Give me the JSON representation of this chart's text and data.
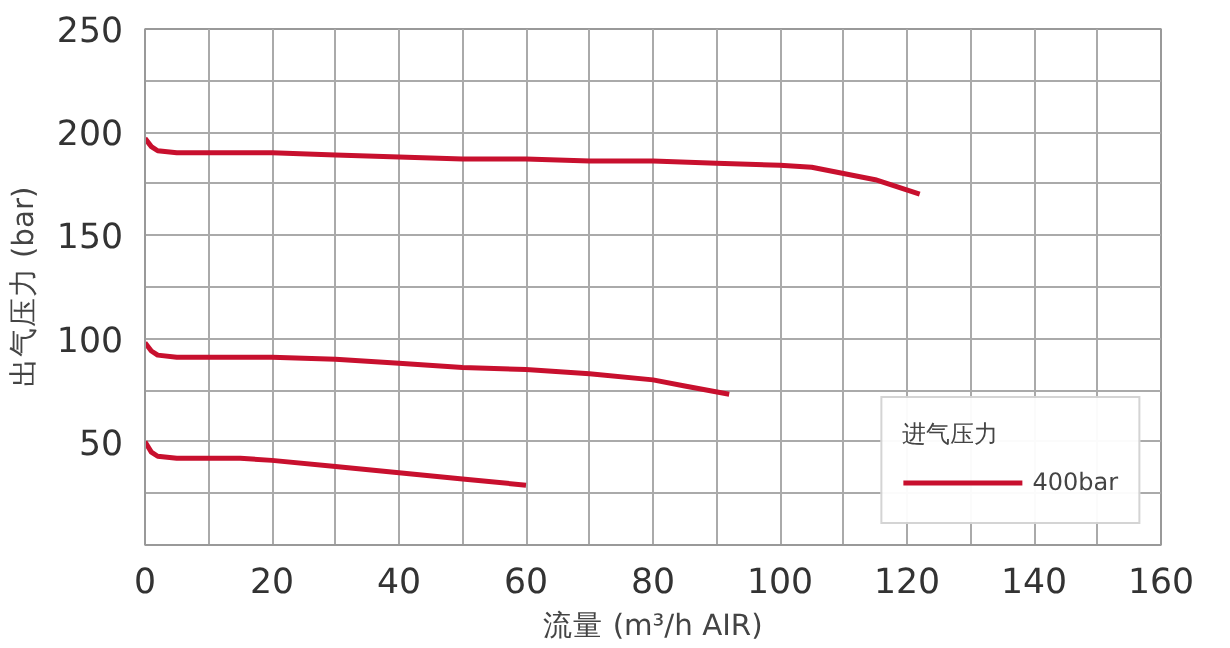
{
  "chart_data": {
    "type": "line",
    "xlabel": "流量 (m³/h AIR)",
    "ylabel": "出气压力 (bar)",
    "legend_title": "进气压力",
    "legend": "bottom right",
    "grid": true,
    "marker": "none",
    "line_style": "solid",
    "xlim": [
      0,
      160
    ],
    "xticks": [
      0,
      {
        "value": 10,
        "label": null
      },
      20,
      {
        "value": 30,
        "label": null
      },
      40,
      {
        "value": 50,
        "label": null
      },
      60,
      {
        "value": 70,
        "label": null
      },
      80,
      {
        "value": 90,
        "label": null
      },
      100,
      {
        "value": 110,
        "label": null
      },
      120,
      {
        "value": 130,
        "label": null
      },
      140,
      {
        "value": 150,
        "label": null
      },
      160
    ],
    "ylim": [
      0,
      250
    ],
    "yticks": [
      {
        "value": 25,
        "label": null
      },
      50,
      {
        "value": 75,
        "label": null
      },
      100,
      {
        "value": 125,
        "label": null
      },
      150,
      {
        "value": 175,
        "label": null
      },
      200,
      {
        "value": 225,
        "label": null
      },
      250
    ],
    "series": [
      {
        "name": "400bar",
        "color": "#c8102e",
        "x": [
          0,
          1,
          2,
          5,
          10,
          20,
          30,
          40,
          50,
          60,
          70,
          80,
          90,
          100,
          105,
          110,
          115,
          122
        ],
        "values": [
          197,
          193,
          191,
          190,
          190,
          190,
          189,
          188,
          187,
          187,
          186,
          186,
          185,
          184,
          183,
          180,
          177,
          170
        ]
      },
      {
        "color": "#c8102e",
        "x": [
          0,
          1,
          2,
          5,
          10,
          20,
          30,
          40,
          50,
          60,
          70,
          80,
          85,
          92
        ],
        "values": [
          98,
          94,
          92,
          91,
          91,
          91,
          90,
          88,
          86,
          85,
          83,
          80,
          77,
          73
        ]
      },
      {
        "color": "#c8102e",
        "x": [
          0,
          1,
          2,
          5,
          10,
          15,
          20,
          30,
          40,
          50,
          60
        ],
        "values": [
          50,
          45,
          43,
          42,
          42,
          42,
          41,
          38,
          35,
          32,
          29
        ]
      }
    ]
  }
}
